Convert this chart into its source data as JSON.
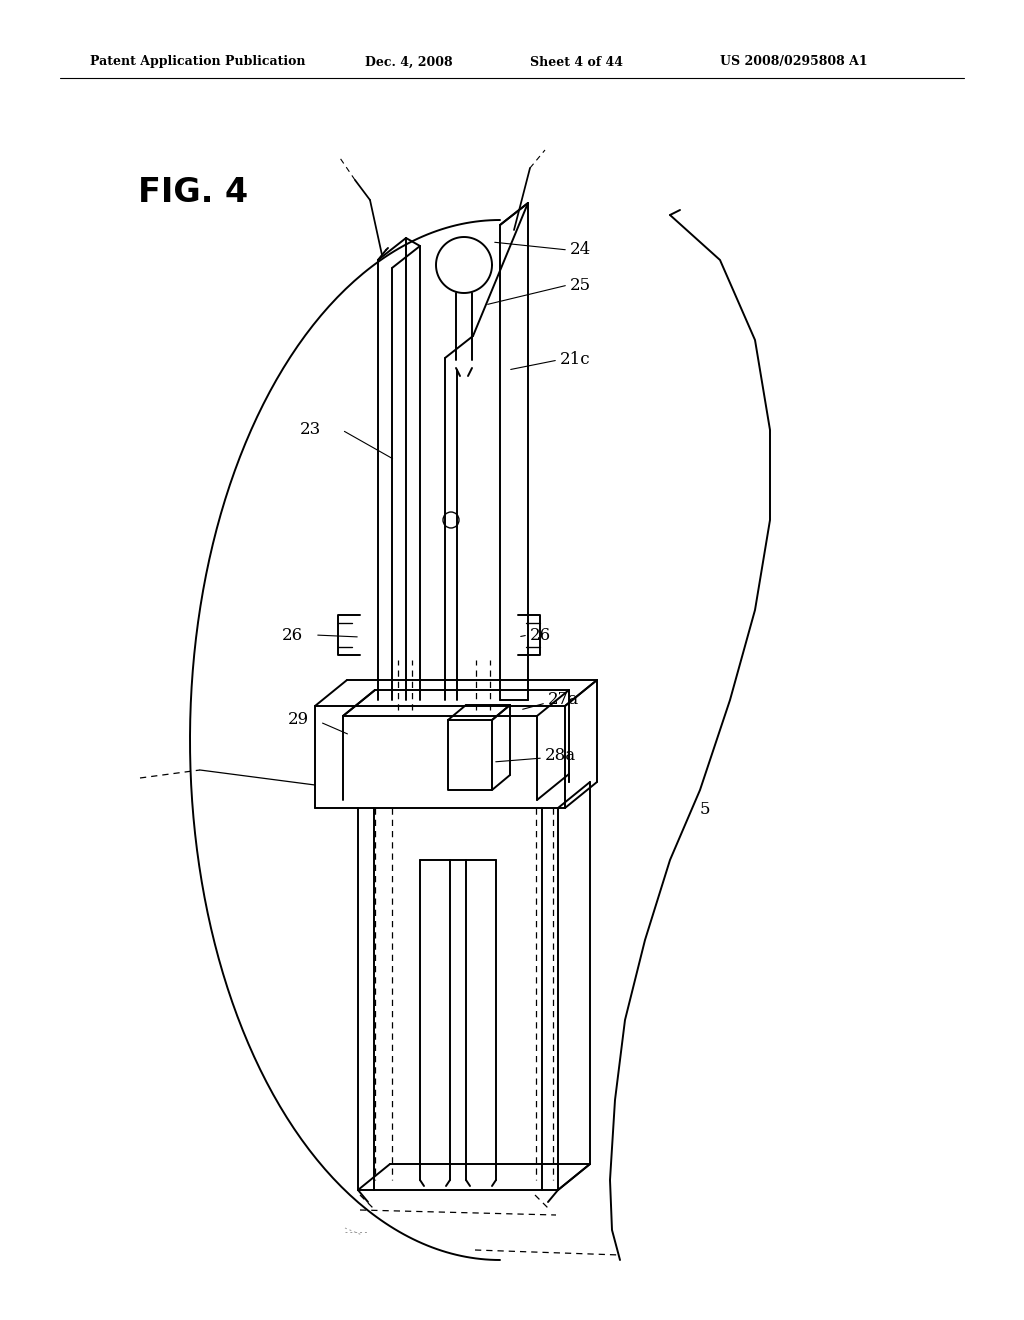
{
  "title_header": "Patent Application Publication",
  "date_header": "Dec. 4, 2008",
  "sheet_header": "Sheet 4 of 44",
  "patent_header": "US 2008/0295808 A1",
  "fig_label": "FIG. 4",
  "background": "#ffffff",
  "line_color": "#000000",
  "line_width": 1.4
}
